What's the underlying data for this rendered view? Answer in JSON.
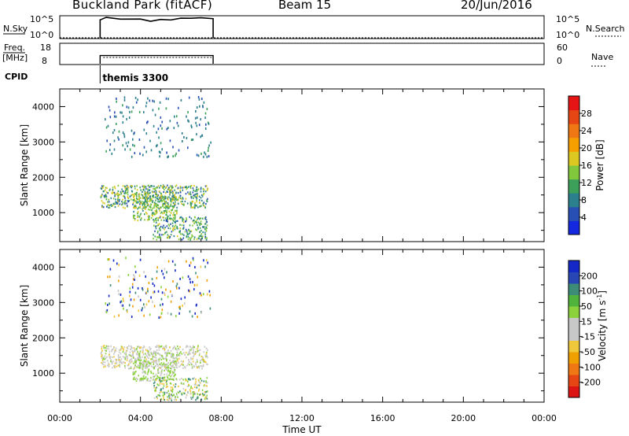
{
  "header": {
    "title": "Buckland Park (fitACF)",
    "beam": "Beam 15",
    "date": "20/Jun/2016"
  },
  "top_panels": {
    "nsky_label": "N.Sky",
    "nsky_ticks": [
      "10^5",
      "10^0"
    ],
    "nsearch_label": "N.Search",
    "freq_label_1": "Freq.",
    "freq_label_2": "[MHz]",
    "freq_ticks": [
      "18",
      "8"
    ],
    "nave_label": "Nave",
    "nave_ticks": [
      "60",
      "0"
    ],
    "cpid_label": "CPID",
    "cpid_value": "themis 3300"
  },
  "axes": {
    "xlabel": "Time UT",
    "xticks": [
      "00:00",
      "04:00",
      "08:00",
      "12:00",
      "16:00",
      "20:00",
      "00:00"
    ],
    "ylabel": "Slant Range [km]",
    "yticks": [
      "1000",
      "2000",
      "3000",
      "4000"
    ]
  },
  "colorbars": {
    "power": {
      "label": "Power [dB]",
      "ticks": [
        "4",
        "8",
        "12",
        "16",
        "20",
        "24",
        "28"
      ],
      "colors": [
        "#1428e0",
        "#2850b4",
        "#2c7f8c",
        "#3ca05a",
        "#82c83c",
        "#dcc820",
        "#f5a000",
        "#f07814",
        "#e64614",
        "#e61414"
      ]
    },
    "velocity": {
      "label_main": "Velocity [m s",
      "label_exp": "-1",
      "label_end": "]",
      "ticks": [
        "200",
        "100",
        "50",
        "15",
        "-15",
        "-50",
        "-100",
        "-200"
      ],
      "colors": [
        "#1428c8",
        "#2846b4",
        "#3c8c78",
        "#50b43c",
        "#8cd23c",
        "#c8c8c8",
        "#c8c8c8",
        "#f0c83c",
        "#f0a000",
        "#f07814",
        "#e64614",
        "#dc1414"
      ]
    }
  },
  "chart_data": [
    {
      "type": "line",
      "name": "N.Sky",
      "x_hours": [
        2.0,
        2.3,
        3.0,
        4.0,
        4.5,
        5.0,
        5.5,
        6.0,
        6.5,
        7.0,
        7.6
      ],
      "y_log10": [
        4.2,
        4.7,
        4.5,
        4.3,
        4.0,
        4.2,
        4.3,
        4.5,
        4.7,
        4.6,
        4.6
      ],
      "ylim": [
        0,
        5
      ],
      "xlim": [
        0,
        24
      ]
    },
    {
      "type": "line",
      "name": "Freq.",
      "x_hours": [
        2.0,
        7.6
      ],
      "y": [
        12,
        12
      ],
      "ylim": [
        8,
        18
      ],
      "xlim": [
        0,
        24
      ]
    },
    {
      "type": "heatmap",
      "name": "Power [dB]",
      "xlim": [
        0,
        24
      ],
      "ylim": [
        180,
        4500
      ],
      "regions": [
        {
          "t": [
            2.0,
            7.3
          ],
          "r": [
            1150,
            1800
          ],
          "value_range": [
            4,
            18
          ]
        },
        {
          "t": [
            3.6,
            5.8
          ],
          "r": [
            800,
            1600
          ],
          "value_range": [
            8,
            18
          ]
        },
        {
          "t": [
            4.6,
            7.3
          ],
          "r": [
            250,
            900
          ],
          "value_range": [
            4,
            16
          ]
        },
        {
          "t": [
            2.2,
            7.5
          ],
          "r": [
            2600,
            4300
          ],
          "value_range": [
            4,
            10
          ]
        }
      ]
    },
    {
      "type": "heatmap",
      "name": "Velocity [m s-1]",
      "xlim": [
        0,
        24
      ],
      "ylim": [
        180,
        4500
      ],
      "regions": [
        {
          "t": [
            2.0,
            7.3
          ],
          "r": [
            1150,
            1800
          ],
          "value_range": [
            -50,
            50
          ]
        },
        {
          "t": [
            3.6,
            5.8
          ],
          "r": [
            800,
            1600
          ],
          "value_range": [
            -15,
            50
          ]
        },
        {
          "t": [
            4.6,
            7.3
          ],
          "r": [
            250,
            900
          ],
          "value_range": [
            -50,
            100
          ]
        },
        {
          "t": [
            2.2,
            7.5
          ],
          "r": [
            2600,
            4300
          ],
          "value_range": [
            -100,
            200
          ]
        }
      ]
    }
  ]
}
